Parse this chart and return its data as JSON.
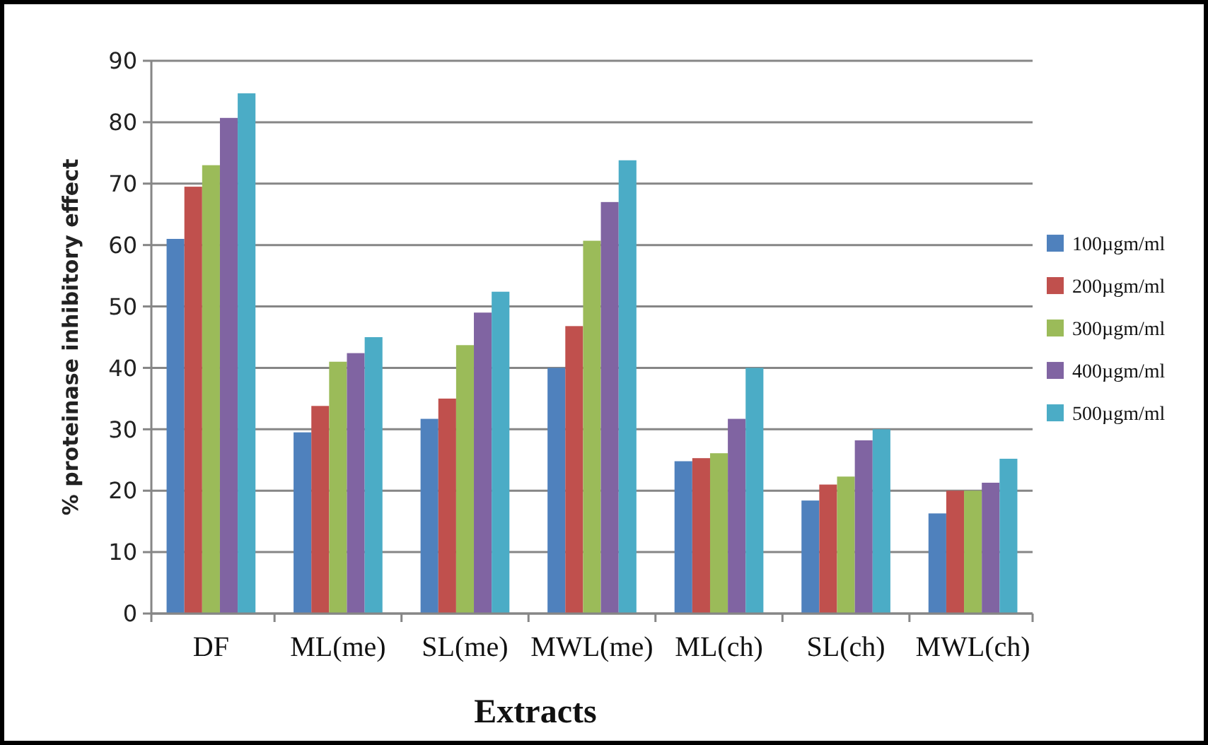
{
  "chart_data": {
    "type": "bar",
    "xlabel": "Extracts",
    "ylabel": "% proteinase inhibitory effect",
    "categories": [
      "DF",
      "ML(me)",
      "SL(me)",
      "MWL(me)",
      "ML(ch)",
      "SL(ch)",
      "MWL(ch)"
    ],
    "series": [
      {
        "name": "100µgm/ml",
        "color": "#4f81bd",
        "values": [
          61,
          29.5,
          31.7,
          40,
          24.8,
          18.4,
          16.3
        ]
      },
      {
        "name": "200µgm/ml",
        "color": "#c0504d",
        "values": [
          69.5,
          33.8,
          35,
          46.8,
          25.3,
          21,
          20
        ]
      },
      {
        "name": "300µgm/ml",
        "color": "#9bbb59",
        "values": [
          73,
          41,
          43.7,
          60.7,
          26.1,
          22.3,
          20
        ]
      },
      {
        "name": "400µgm/ml",
        "color": "#8064a2",
        "values": [
          80.7,
          42.4,
          49,
          67,
          31.7,
          28.2,
          21.3
        ]
      },
      {
        "name": "500µgm/ml",
        "color": "#4bacc6",
        "values": [
          84.7,
          45,
          52.4,
          73.8,
          40,
          30,
          25.2
        ]
      }
    ],
    "ylim": [
      0,
      90
    ],
    "yticks": [
      0,
      10,
      20,
      30,
      40,
      50,
      60,
      70,
      80,
      90
    ],
    "grid": "y",
    "legend": "right"
  }
}
